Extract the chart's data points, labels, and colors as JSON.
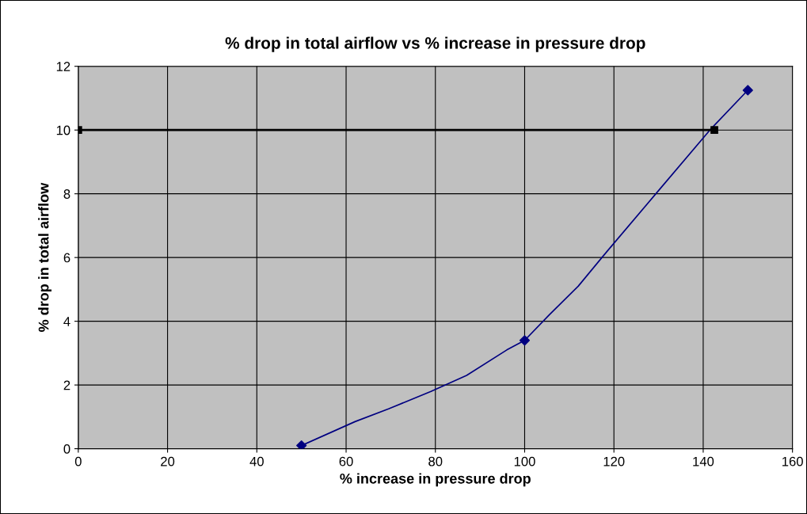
{
  "chart_data": {
    "type": "line",
    "title": "% drop in total airflow vs % increase in pressure drop",
    "xlabel": "% increase in pressure drop",
    "ylabel": "% drop in total airflow",
    "series": [
      {
        "color": "#000080",
        "x": [
          50,
          62,
          69.5,
          79,
          87,
          96,
          100,
          105.5,
          112,
          118.5,
          130,
          141.5,
          150
        ],
        "values": [
          0.1,
          0.85,
          1.25,
          1.8,
          2.3,
          3.1,
          3.4,
          4.2,
          5.1,
          6.2,
          8.1,
          10,
          11.25
        ],
        "marker": "none"
      },
      {
        "type": "scatter",
        "color": "#000080",
        "x": [
          50,
          100,
          150
        ],
        "values": [
          0.1,
          3.4,
          11.25
        ],
        "marker": "diamond"
      },
      {
        "color": "#000000",
        "x": [
          0,
          142.5
        ],
        "values": [
          10,
          10
        ],
        "marker": "square"
      }
    ],
    "xlim": [
      0,
      160
    ],
    "xticks": [
      0,
      20,
      40,
      60,
      80,
      100,
      120,
      140,
      160
    ],
    "ylim": [
      0,
      12
    ],
    "yticks": [
      0,
      2,
      4,
      6,
      8,
      10,
      12
    ],
    "grid": true,
    "legend": false
  }
}
